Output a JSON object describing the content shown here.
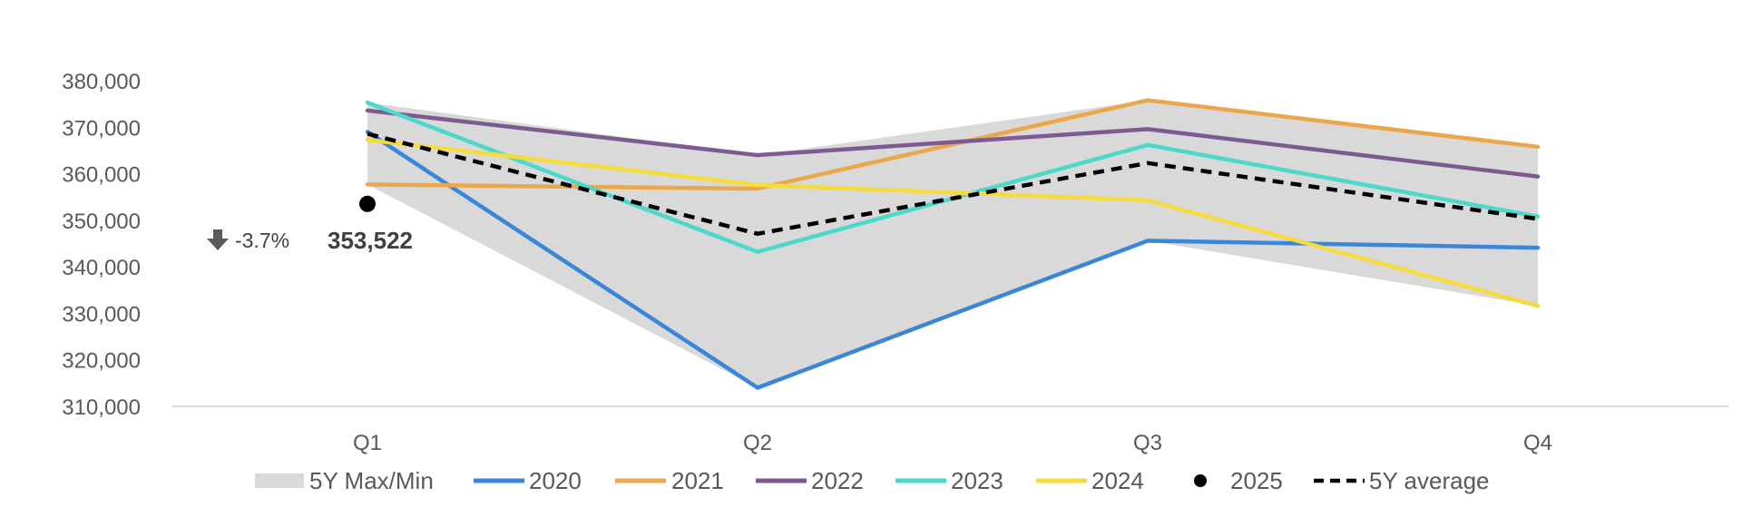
{
  "chart_data": {
    "type": "line",
    "title": "",
    "xlabel": "",
    "ylabel": "",
    "categories": [
      "Q1",
      "Q2",
      "Q3",
      "Q4"
    ],
    "ylim": [
      310000,
      380000
    ],
    "yticks": [
      310000,
      320000,
      330000,
      340000,
      350000,
      360000,
      370000,
      380000
    ],
    "ytick_labels": [
      "310,000",
      "320,000",
      "330,000",
      "340,000",
      "350,000",
      "360,000",
      "370,000",
      "380,000"
    ],
    "grid": false,
    "legend_position": "bottom",
    "band": {
      "name": "5Y Max/Min",
      "color": "#d9d9d9",
      "max": [
        375300,
        364000,
        375800,
        365800
      ],
      "min": [
        357700,
        314000,
        345600,
        331600
      ]
    },
    "series": [
      {
        "name": "2020",
        "color": "#3a86d9",
        "values": [
          369000,
          314000,
          345600,
          344100
        ]
      },
      {
        "name": "2021",
        "color": "#eaa84c",
        "values": [
          357700,
          356800,
          375800,
          365800
        ]
      },
      {
        "name": "2022",
        "color": "#7d5a91",
        "values": [
          373600,
          364000,
          369600,
          359400
        ]
      },
      {
        "name": "2023",
        "color": "#4cd9c9",
        "values": [
          375300,
          343200,
          366200,
          350800
        ]
      },
      {
        "name": "2024",
        "color": "#f5dc3c",
        "values": [
          367300,
          357600,
          354300,
          331600
        ]
      }
    ],
    "points": [
      {
        "name": "2025",
        "color": "#000000",
        "category": "Q1",
        "value": 353522,
        "label": "353,522"
      }
    ],
    "average": {
      "name": "5Y average",
      "color": "#000000",
      "dash": "dashed",
      "values": [
        368600,
        347100,
        362300,
        350300
      ]
    },
    "annotation": {
      "icon": "arrow-down-icon",
      "text": "-3.7%"
    }
  }
}
